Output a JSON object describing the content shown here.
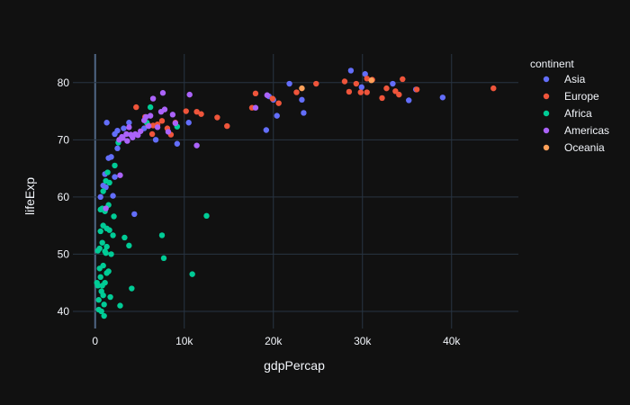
{
  "chart_data": {
    "type": "scatter",
    "xlabel": "gdpPercap",
    "ylabel": "lifeExp",
    "xlim": [
      -2500,
      47500
    ],
    "ylim": [
      37,
      85
    ],
    "x_ticks": [
      {
        "value": 0,
        "label": "0"
      },
      {
        "value": 10000,
        "label": "10k"
      },
      {
        "value": 20000,
        "label": "20k"
      },
      {
        "value": 30000,
        "label": "30k"
      },
      {
        "value": 40000,
        "label": "40k"
      }
    ],
    "y_ticks": [
      {
        "value": 40,
        "label": "40"
      },
      {
        "value": 50,
        "label": "50"
      },
      {
        "value": 60,
        "label": "60"
      },
      {
        "value": 70,
        "label": "70"
      },
      {
        "value": 80,
        "label": "80"
      }
    ],
    "grid": true,
    "legend": {
      "title": "continent",
      "placement": "top-right"
    },
    "series": [
      {
        "name": "Asia",
        "color": "#636efa",
        "points": [
          [
            1300,
            73.0
          ],
          [
            2200,
            71.0
          ],
          [
            3200,
            72.0
          ],
          [
            3800,
            73.0
          ],
          [
            2500,
            68.5
          ],
          [
            1800,
            67.0
          ],
          [
            1100,
            64.0
          ],
          [
            900,
            62.0
          ],
          [
            600,
            60.0
          ],
          [
            2000,
            60.2
          ],
          [
            2200,
            63.5
          ],
          [
            4400,
            57.0
          ],
          [
            5500,
            72.0
          ],
          [
            6800,
            70.0
          ],
          [
            9200,
            69.3
          ],
          [
            10500,
            73.0
          ],
          [
            19500,
            77.6
          ],
          [
            20000,
            77.0
          ],
          [
            19200,
            71.7
          ],
          [
            20400,
            74.2
          ],
          [
            21800,
            79.8
          ],
          [
            23200,
            77.0
          ],
          [
            23400,
            74.7
          ],
          [
            28700,
            82.1
          ],
          [
            29900,
            79.2
          ],
          [
            30300,
            81.5
          ],
          [
            33400,
            79.8
          ],
          [
            35200,
            76.9
          ],
          [
            36000,
            78.8
          ],
          [
            39000,
            77.4
          ],
          [
            1500,
            66.8
          ],
          [
            1200,
            61.7
          ],
          [
            2500,
            71.6
          ]
        ]
      },
      {
        "name": "Europe",
        "color": "#ef553b",
        "points": [
          [
            4600,
            75.7
          ],
          [
            5600,
            74.0
          ],
          [
            6400,
            71.0
          ],
          [
            7000,
            72.7
          ],
          [
            7500,
            73.3
          ],
          [
            8100,
            72.0
          ],
          [
            8500,
            70.9
          ],
          [
            9000,
            73.0
          ],
          [
            10200,
            75.0
          ],
          [
            11400,
            74.9
          ],
          [
            11900,
            74.5
          ],
          [
            13700,
            73.9
          ],
          [
            14800,
            72.4
          ],
          [
            17600,
            75.6
          ],
          [
            18000,
            78.1
          ],
          [
            19900,
            77.2
          ],
          [
            20600,
            76.4
          ],
          [
            22600,
            78.3
          ],
          [
            24800,
            79.8
          ],
          [
            28000,
            80.2
          ],
          [
            28500,
            78.4
          ],
          [
            29300,
            79.8
          ],
          [
            29800,
            78.3
          ],
          [
            30500,
            80.7
          ],
          [
            30500,
            78.3
          ],
          [
            31100,
            80.5
          ],
          [
            32200,
            77.3
          ],
          [
            32700,
            79.0
          ],
          [
            33700,
            78.5
          ],
          [
            34100,
            77.9
          ],
          [
            34500,
            80.6
          ],
          [
            36100,
            78.8
          ],
          [
            44700,
            79.0
          ],
          [
            5900,
            72.7
          ],
          [
            6500,
            72.5
          ]
        ]
      },
      {
        "name": "Africa",
        "color": "#00cc96",
        "points": [
          [
            200,
            45.0
          ],
          [
            300,
            44.5
          ],
          [
            400,
            42.0
          ],
          [
            500,
            47.5
          ],
          [
            500,
            51.0
          ],
          [
            600,
            46.0
          ],
          [
            700,
            43.5
          ],
          [
            700,
            40.0
          ],
          [
            800,
            52.0
          ],
          [
            800,
            44.5
          ],
          [
            900,
            48.0
          ],
          [
            900,
            55.0
          ],
          [
            1000,
            39.2
          ],
          [
            1100,
            50.5
          ],
          [
            1100,
            57.5
          ],
          [
            1300,
            46.7
          ],
          [
            1300,
            54.5
          ],
          [
            1500,
            58.6
          ],
          [
            1600,
            62.5
          ],
          [
            1700,
            42.5
          ],
          [
            1800,
            50.0
          ],
          [
            2000,
            53.3
          ],
          [
            2100,
            56.6
          ],
          [
            2800,
            41.0
          ],
          [
            3300,
            52.9
          ],
          [
            3800,
            51.5
          ],
          [
            4100,
            44.0
          ],
          [
            5800,
            73.0
          ],
          [
            6200,
            75.7
          ],
          [
            7500,
            53.3
          ],
          [
            7700,
            49.3
          ],
          [
            9200,
            72.3
          ],
          [
            10900,
            46.5
          ],
          [
            12500,
            56.7
          ],
          [
            1200,
            62.8
          ],
          [
            1400,
            64.3
          ],
          [
            2200,
            65.5
          ],
          [
            300,
            50.6
          ],
          [
            600,
            54.0
          ],
          [
            800,
            58.0
          ],
          [
            900,
            61.0
          ],
          [
            1200,
            50.2
          ],
          [
            1500,
            47.0
          ],
          [
            1000,
            41.2
          ],
          [
            400,
            40.3
          ],
          [
            1100,
            45.0
          ],
          [
            1300,
            51.3
          ],
          [
            1600,
            54.2
          ],
          [
            900,
            42.8
          ],
          [
            2600,
            69.5
          ],
          [
            600,
            57.8
          ]
        ]
      },
      {
        "name": "Americas",
        "color": "#ab63fa",
        "points": [
          [
            1200,
            58.0
          ],
          [
            2800,
            63.8
          ],
          [
            3100,
            70.3
          ],
          [
            3500,
            71.0
          ],
          [
            3800,
            72.2
          ],
          [
            4200,
            70.4
          ],
          [
            4500,
            71.0
          ],
          [
            4800,
            70.8
          ],
          [
            5100,
            71.5
          ],
          [
            5700,
            74.0
          ],
          [
            6000,
            72.4
          ],
          [
            6200,
            74.2
          ],
          [
            6500,
            77.2
          ],
          [
            7000,
            72.2
          ],
          [
            7400,
            74.9
          ],
          [
            7600,
            78.2
          ],
          [
            7800,
            75.3
          ],
          [
            8200,
            71.4
          ],
          [
            8700,
            74.4
          ],
          [
            9000,
            72.9
          ],
          [
            10600,
            77.9
          ],
          [
            11400,
            69.0
          ],
          [
            18000,
            75.6
          ],
          [
            19300,
            77.8
          ],
          [
            3000,
            70.5
          ],
          [
            3600,
            69.8
          ],
          [
            5500,
            73.4
          ],
          [
            4000,
            70.9
          ],
          [
            2700,
            70.0
          ]
        ]
      },
      {
        "name": "Oceania",
        "color": "#ffa15a",
        "points": [
          [
            23200,
            79.0
          ],
          [
            31000,
            80.4
          ]
        ]
      }
    ]
  }
}
